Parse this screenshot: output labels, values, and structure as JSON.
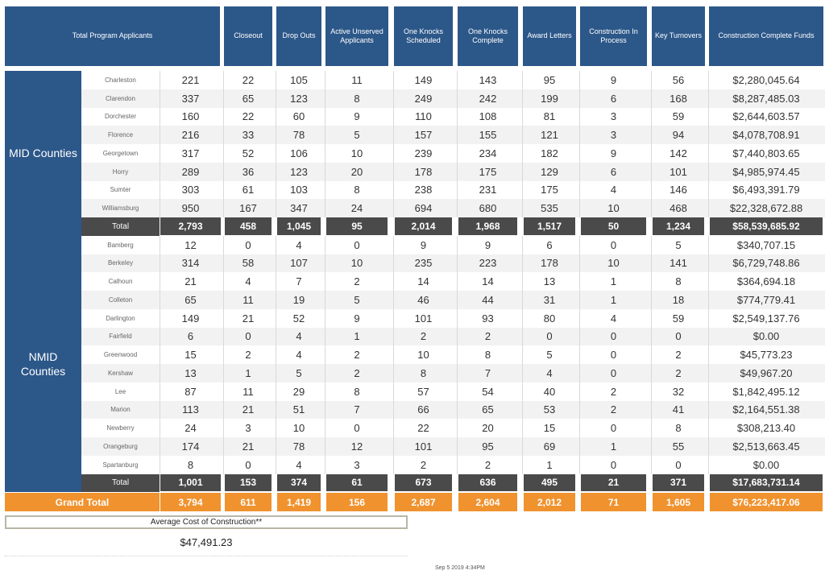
{
  "chart_data": {
    "type": "table",
    "columns": [
      "Total Program Applicants",
      "Closeout",
      "Drop Outs",
      "Active Unserved Applicants",
      "One Knocks Scheduled",
      "One Knocks Complete",
      "Award Letters",
      "Construction In Process",
      "Key Turnovers",
      "Construction Complete Funds"
    ],
    "groups": [
      {
        "name": "MID Counties",
        "rows": [
          {
            "county": "Charleston",
            "values": [
              "221",
              "22",
              "105",
              "11",
              "149",
              "143",
              "95",
              "9",
              "56",
              "$2,280,045.64"
            ]
          },
          {
            "county": "Clarendon",
            "values": [
              "337",
              "65",
              "123",
              "8",
              "249",
              "242",
              "199",
              "6",
              "168",
              "$8,287,485.03"
            ]
          },
          {
            "county": "Dorchester",
            "values": [
              "160",
              "22",
              "60",
              "9",
              "110",
              "108",
              "81",
              "3",
              "59",
              "$2,644,603.57"
            ]
          },
          {
            "county": "Florence",
            "values": [
              "216",
              "33",
              "78",
              "5",
              "157",
              "155",
              "121",
              "3",
              "94",
              "$4,078,708.91"
            ]
          },
          {
            "county": "Georgetown",
            "values": [
              "317",
              "52",
              "106",
              "10",
              "239",
              "234",
              "182",
              "9",
              "142",
              "$7,440,803.65"
            ]
          },
          {
            "county": "Horry",
            "values": [
              "289",
              "36",
              "123",
              "20",
              "178",
              "175",
              "129",
              "6",
              "101",
              "$4,985,974.45"
            ]
          },
          {
            "county": "Sumter",
            "values": [
              "303",
              "61",
              "103",
              "8",
              "238",
              "231",
              "175",
              "4",
              "146",
              "$6,493,391.79"
            ]
          },
          {
            "county": "Williamsburg",
            "values": [
              "950",
              "167",
              "347",
              "24",
              "694",
              "680",
              "535",
              "10",
              "468",
              "$22,328,672.88"
            ]
          }
        ],
        "total": {
          "label": "Total",
          "values": [
            "2,793",
            "458",
            "1,045",
            "95",
            "2,014",
            "1,968",
            "1,517",
            "50",
            "1,234",
            "$58,539,685.92"
          ]
        }
      },
      {
        "name": "NMID Counties",
        "rows": [
          {
            "county": "Bamberg",
            "values": [
              "12",
              "0",
              "4",
              "0",
              "9",
              "9",
              "6",
              "0",
              "5",
              "$340,707.15"
            ]
          },
          {
            "county": "Berkeley",
            "values": [
              "314",
              "58",
              "107",
              "10",
              "235",
              "223",
              "178",
              "10",
              "141",
              "$6,729,748.86"
            ]
          },
          {
            "county": "Calhoun",
            "values": [
              "21",
              "4",
              "7",
              "2",
              "14",
              "14",
              "13",
              "1",
              "8",
              "$364,694.18"
            ]
          },
          {
            "county": "Colleton",
            "values": [
              "65",
              "11",
              "19",
              "5",
              "46",
              "44",
              "31",
              "1",
              "18",
              "$774,779.41"
            ]
          },
          {
            "county": "Darlington",
            "values": [
              "149",
              "21",
              "52",
              "9",
              "101",
              "93",
              "80",
              "4",
              "59",
              "$2,549,137.76"
            ]
          },
          {
            "county": "Fairfield",
            "values": [
              "6",
              "0",
              "4",
              "1",
              "2",
              "2",
              "0",
              "0",
              "0",
              "$0.00"
            ]
          },
          {
            "county": "Greenwood",
            "values": [
              "15",
              "2",
              "4",
              "2",
              "10",
              "8",
              "5",
              "0",
              "2",
              "$45,773.23"
            ]
          },
          {
            "county": "Kershaw",
            "values": [
              "13",
              "1",
              "5",
              "2",
              "8",
              "7",
              "4",
              "0",
              "2",
              "$49,967.20"
            ]
          },
          {
            "county": "Lee",
            "values": [
              "87",
              "11",
              "29",
              "8",
              "57",
              "54",
              "40",
              "2",
              "32",
              "$1,842,495.12"
            ]
          },
          {
            "county": "Marion",
            "values": [
              "113",
              "21",
              "51",
              "7",
              "66",
              "65",
              "53",
              "2",
              "41",
              "$2,164,551.38"
            ]
          },
          {
            "county": "Newberry",
            "values": [
              "24",
              "3",
              "10",
              "0",
              "22",
              "20",
              "15",
              "0",
              "8",
              "$308,213.40"
            ]
          },
          {
            "county": "Orangeburg",
            "values": [
              "174",
              "21",
              "78",
              "12",
              "101",
              "95",
              "69",
              "1",
              "55",
              "$2,513,663.45"
            ]
          },
          {
            "county": "Spartanburg",
            "values": [
              "8",
              "0",
              "4",
              "3",
              "2",
              "2",
              "1",
              "0",
              "0",
              "$0.00"
            ]
          }
        ],
        "total": {
          "label": "Total",
          "values": [
            "1,001",
            "153",
            "374",
            "61",
            "673",
            "636",
            "495",
            "21",
            "371",
            "$17,683,731.14"
          ]
        }
      }
    ],
    "grand_total": {
      "label": "Grand Total",
      "values": [
        "3,794",
        "611",
        "1,419",
        "156",
        "2,687",
        "2,604",
        "2,012",
        "71",
        "1,605",
        "$76,223,417.06"
      ]
    }
  },
  "summary": {
    "avg_label": "Average Cost of Construction**",
    "avg_value": "$47,491.23",
    "timestamp": "Sep 5 2019  4:34PM"
  },
  "colors": {
    "header_blue": "#2c5789",
    "total_gray": "#4a4a4a",
    "grand_orange": "#f0922e"
  }
}
